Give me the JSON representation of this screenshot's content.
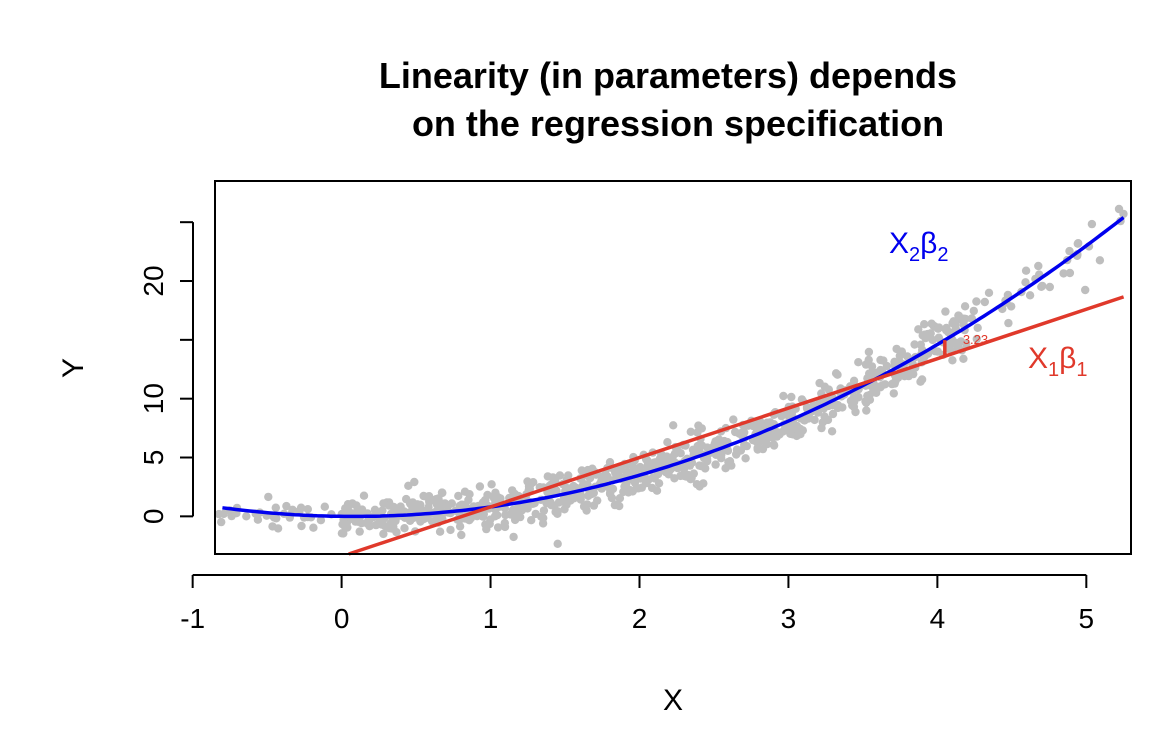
{
  "chart_data": {
    "type": "scatter",
    "title_line1": "Linearity (in parameters) depends",
    "title_line2": "on the regression specification",
    "xlabel": "X",
    "ylabel": "Y",
    "xlim": [
      -0.85,
      5.3
    ],
    "ylim": [
      -3.2,
      28.5
    ],
    "x_ticks": [
      -1,
      0,
      1,
      2,
      3,
      4,
      5
    ],
    "x_tick_labels": [
      "-1",
      "0",
      "1",
      "2",
      "3",
      "4",
      "5"
    ],
    "y_ticks": [
      0,
      5,
      10,
      15,
      20,
      25
    ],
    "y_tick_labels": [
      "0",
      "5",
      "10",
      "",
      "20",
      ""
    ],
    "grid": false,
    "points_color": "#bebebe",
    "line_fit": {
      "name": "X₁β₁",
      "label_main": "X",
      "label_sub1": "1",
      "label_beta": "β",
      "label_sub2": "1",
      "color": "#e0392b",
      "intercept": -3.4,
      "slope": 4.2,
      "x_range": [
        0.0,
        5.25
      ]
    },
    "quad_fit": {
      "name": "X₂β₂",
      "label_main": "X",
      "label_sub1": "2",
      "label_beta": "β",
      "label_sub2": "2",
      "color": "#0000ee",
      "a": 0.0,
      "b": -0.15,
      "c": 0.95,
      "x_range": [
        -0.8,
        5.25
      ]
    },
    "residual": {
      "x": 4.05,
      "label": "3.23",
      "color": "#e0392b"
    },
    "scatter_seed": 7,
    "scatter_n": 900,
    "scatter_x_range": [
      -0.85,
      5.25
    ]
  }
}
